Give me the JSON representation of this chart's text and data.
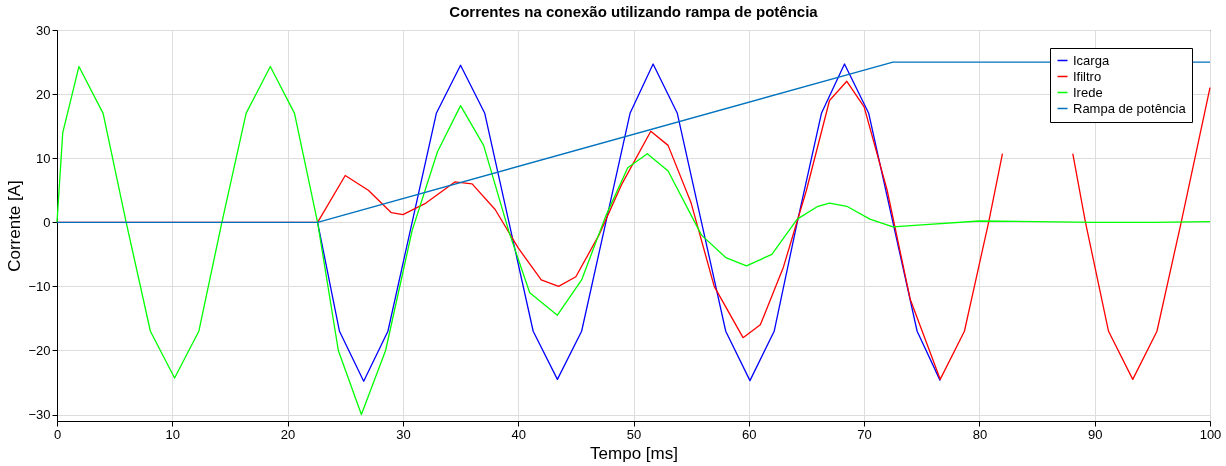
{
  "chart_data": {
    "type": "line",
    "title": "Correntes na conexão utilizando rampa de potência",
    "xlabel": "Tempo [ms]",
    "ylabel": "Corrente [A]",
    "xlim": [
      0,
      100
    ],
    "xticks": [
      0,
      10,
      20,
      30,
      40,
      50,
      60,
      70,
      80,
      90,
      100
    ],
    "ylim": [
      -31,
      30
    ],
    "yticks": [
      -30,
      -20,
      -10,
      0,
      10,
      20,
      30
    ],
    "grid": true,
    "legend": "top right",
    "line_style": "solid",
    "marker": "none",
    "series": [
      {
        "name": "Icarga",
        "color": "#0000ff",
        "x": [
          22.6,
          24.5,
          26.6,
          28.7,
          30.8,
          32.9,
          35,
          37.1,
          39.2,
          41.3,
          43.4,
          45.5,
          47.6,
          49.7,
          51.7,
          53.8,
          55.9,
          58,
          60.1,
          62.2,
          64.2,
          66.3,
          68.3,
          70.4,
          72.5,
          74.6,
          76.6
        ],
        "values": [
          0,
          -17,
          -24.8,
          -17,
          0,
          17,
          24.5,
          17,
          0,
          -17,
          -24.5,
          -17,
          0,
          17,
          24.7,
          17,
          0,
          -17,
          -24.7,
          -17,
          0,
          17,
          24.7,
          17,
          0,
          -17,
          -24.7
        ]
      },
      {
        "name": "Ifiltro",
        "color": "#ff0000",
        "x": [
          0,
          22.6,
          25,
          27,
          29,
          30,
          32,
          34.5,
          36,
          38,
          40,
          42,
          43.5,
          45,
          47,
          49,
          51.5,
          53,
          55,
          57,
          59.5,
          61,
          63,
          65,
          67,
          68.5,
          70,
          72,
          74,
          76.6,
          78.7,
          80.8,
          82,
          82.9,
          85,
          87.1,
          88.1,
          89.2,
          91.2,
          93.3,
          95.4,
          97.5,
          100
        ],
        "values": [
          0,
          0,
          7.3,
          5,
          1.5,
          1.2,
          3,
          6.3,
          6,
          2,
          -4,
          -9,
          -10,
          -8.5,
          -2,
          6,
          14.2,
          12,
          3,
          -10,
          -18,
          -16,
          -7,
          5,
          19,
          22,
          18,
          5,
          -12,
          -24.5,
          -17,
          0,
          10.7,
          null,
          null,
          null,
          10.7,
          0,
          -17,
          -24.5,
          -17,
          0,
          21
        ]
      },
      {
        "name": "Irede",
        "color": "#00ff00",
        "x": [
          0,
          0.5,
          1.9,
          4,
          6,
          8.1,
          10.2,
          12.3,
          14.3,
          16.4,
          18.5,
          20.6,
          22.6,
          24.4,
          26.4,
          28.5,
          30.8,
          33,
          35,
          37,
          39.2,
          41,
          43.4,
          45.5,
          47.6,
          49.5,
          51.2,
          53,
          55.9,
          58,
          59.8,
          62,
          64.2,
          66,
          67,
          68.5,
          70.5,
          72.5,
          75,
          80,
          85,
          90,
          95,
          100
        ],
        "values": [
          0,
          14,
          24.3,
          17,
          0,
          -17,
          -24.3,
          -17,
          0,
          17,
          24.3,
          17,
          0,
          -20,
          -30,
          -20,
          -1.3,
          11,
          18.2,
          12,
          -1.5,
          -11,
          -14.5,
          -9,
          1,
          8.5,
          10.7,
          8,
          -2,
          -5.5,
          -6.8,
          -5,
          0.5,
          2.5,
          3,
          2.5,
          0.5,
          -0.7,
          -0.4,
          0.2,
          0.1,
          0,
          0,
          0.1
        ]
      },
      {
        "name": "Rampa de potência",
        "color": "#0072bd",
        "x": [
          0,
          22.6,
          72.5,
          100
        ],
        "values": [
          0,
          0,
          25,
          25
        ]
      }
    ]
  }
}
